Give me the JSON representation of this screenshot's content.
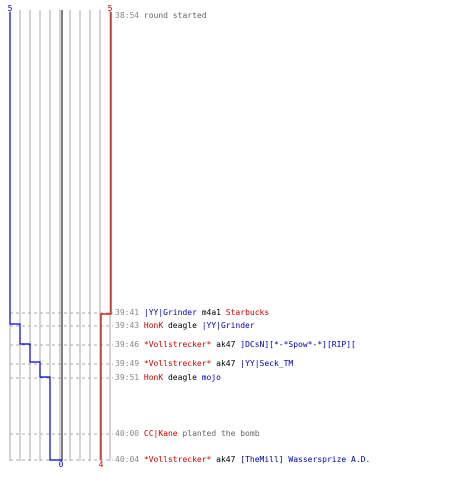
{
  "scoreboard": {
    "blue_start": "5",
    "red_start": "5",
    "blue_end": "0",
    "red_end": "4"
  },
  "colors": {
    "blue_team": "#0000cc",
    "red_team": "#cc0000",
    "grid": "#aaaaaa",
    "axis": "#555555",
    "time": "#888888"
  },
  "events": [
    {
      "time": "38:54",
      "parts": [
        {
          "text": "round started",
          "color": "gray"
        }
      ]
    },
    {
      "time": "39:41",
      "parts": [
        {
          "text": "|YY|Grinder",
          "color": "blue"
        },
        {
          "text": "m4a1",
          "color": "black"
        },
        {
          "text": "Starbucks",
          "color": "red"
        }
      ]
    },
    {
      "time": "39:43",
      "parts": [
        {
          "text": "HonK",
          "color": "red"
        },
        {
          "text": "deagle",
          "color": "black"
        },
        {
          "text": "|YY|Grinder",
          "color": "blue"
        }
      ]
    },
    {
      "time": "39:46",
      "parts": [
        {
          "text": "*Vollstrecker*",
          "color": "red"
        },
        {
          "text": "ak47",
          "color": "black"
        },
        {
          "text": "]DCsN][*-*Spow*-*][RIP][",
          "color": "blue"
        }
      ]
    },
    {
      "time": "39:49",
      "parts": [
        {
          "text": "*Vollstrecker*",
          "color": "red"
        },
        {
          "text": "ak47",
          "color": "black"
        },
        {
          "text": "|YY|Seck_TM",
          "color": "blue"
        }
      ]
    },
    {
      "time": "39:51",
      "parts": [
        {
          "text": "HonK",
          "color": "red"
        },
        {
          "text": "deagle",
          "color": "black"
        },
        {
          "text": "mojo",
          "color": "blue"
        }
      ]
    },
    {
      "time": "40:00",
      "parts": [
        {
          "text": "CC|Kane",
          "color": "red"
        },
        {
          "text": "planted the bomb",
          "color": "gray"
        }
      ]
    },
    {
      "time": "40:04",
      "parts": [
        {
          "text": "*Vollstrecker*",
          "color": "red"
        },
        {
          "text": "ak47",
          "color": "black"
        },
        {
          "text": "[TheMill] Wassersprize A.D.",
          "color": "blue"
        }
      ]
    }
  ]
}
